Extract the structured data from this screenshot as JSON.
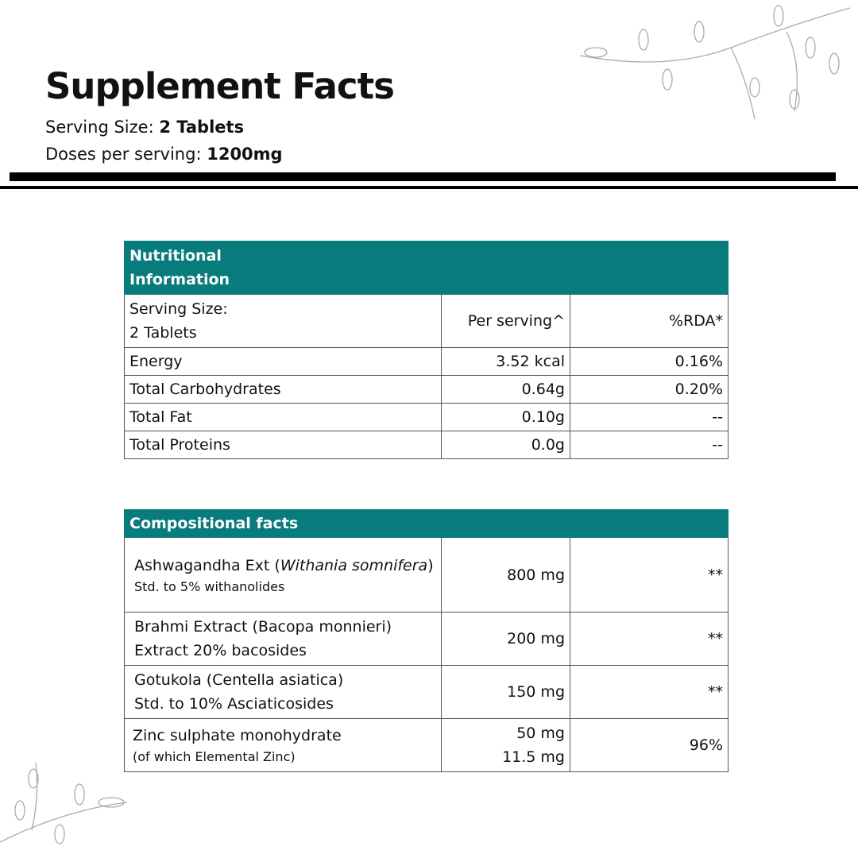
{
  "title": "Supplement Facts",
  "serving_size": {
    "label": "Serving Size:",
    "value": "2 Tablets"
  },
  "doses": {
    "label": "Doses per serving:",
    "value": "1200mg"
  },
  "nutrition": {
    "header": "Nutritional Information",
    "columns": [
      "Serving Size:",
      "2 Tablets",
      "Per serving^",
      "%RDA*"
    ],
    "rows": [
      {
        "name": "Energy",
        "per": "3.52 kcal",
        "rda": "0.16%"
      },
      {
        "name": "Total Carbohydrates",
        "per": "0.64g",
        "rda": "0.20%"
      },
      {
        "name": "Total Fat",
        "per": "0.10g",
        "rda": "--"
      },
      {
        "name": "Total Proteins",
        "per": "0.0g",
        "rda": "--"
      }
    ]
  },
  "composition": {
    "header": "Compositional facts",
    "rows": [
      {
        "name": "Ashwagandha Ext (",
        "italic": "Withania somnifera",
        "close": ")",
        "note": "Std. to 5% withanolides",
        "per": "800 mg",
        "rda": "**"
      },
      {
        "name": "Brahmi Extract (Bacopa monnieri)",
        "note": "Extract 20% bacosides",
        "per": "200 mg",
        "rda": "**"
      },
      {
        "name": "Gotukola (Centella asiatica)",
        "note": "Std. to 10% Asciaticosides",
        "per": "150 mg",
        "rda": "**"
      },
      {
        "name": "Zinc sulphate monohydrate",
        "note": "(of which Elemental Zinc)",
        "per": "50 mg",
        "per2": "11.5 mg",
        "rda": "96%"
      }
    ]
  },
  "colors": {
    "accent": "#087b7c"
  }
}
